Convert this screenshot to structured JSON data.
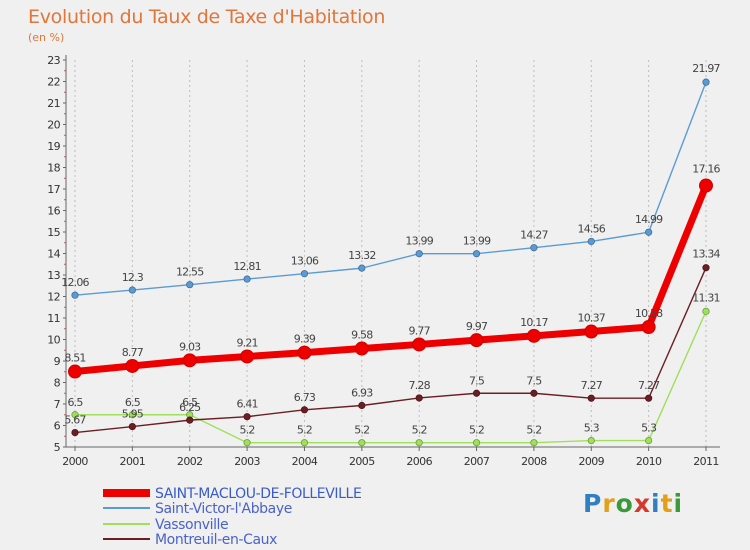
{
  "header": {
    "title": "Evolution du Taux de Taxe d'Habitation",
    "subtitle": "(en %)"
  },
  "logo": {
    "letters": [
      "P",
      "r",
      "o",
      "x",
      "i",
      "t",
      "i"
    ],
    "colors": [
      "#2f7fc1",
      "#e2a019",
      "#3a9a3a",
      "#d33a2c",
      "#2f7fc1",
      "#e2a019",
      "#3a9a3a"
    ]
  },
  "chart_data": {
    "type": "line",
    "title": "Evolution du Taux de Taxe d'Habitation",
    "ylabel": "(en %)",
    "x": [
      "2000",
      "2001",
      "2002",
      "2003",
      "2004",
      "2005",
      "2006",
      "2007",
      "2008",
      "2009",
      "2010",
      "2011"
    ],
    "ylim": [
      5,
      23
    ],
    "yticks": [
      5,
      6,
      7,
      8,
      9,
      10,
      11,
      12,
      13,
      14,
      15,
      16,
      17,
      18,
      19,
      20,
      21,
      22,
      23
    ],
    "grid": "vertical",
    "legend_position": "bottom-left",
    "series": [
      {
        "name": "SAINT-MACLOU-DE-FOLLEVILLE",
        "color": "#ee0000",
        "values": [
          8.51,
          8.77,
          9.03,
          9.21,
          9.39,
          9.58,
          9.77,
          9.97,
          10.17,
          10.37,
          10.58,
          17.16
        ],
        "labels": [
          "8.51",
          "8.77",
          "9.03",
          "9.21",
          "9.39",
          "9.58",
          "9.77",
          "9.97",
          "10.17",
          "10.37",
          "10.58",
          "17.16"
        ]
      },
      {
        "name": "Saint-Victor-l'Abbaye",
        "color": "#5b9bd5",
        "values": [
          12.06,
          12.3,
          12.55,
          12.81,
          13.06,
          13.32,
          13.99,
          13.99,
          14.27,
          14.56,
          14.99,
          21.97
        ],
        "labels": [
          "12.06",
          "12.3",
          "12.55",
          "12.81",
          "13.06",
          "13.32",
          "13.99",
          "13.99",
          "14.27",
          "14.56",
          "14.99",
          "21.97"
        ]
      },
      {
        "name": "Vassonville",
        "color": "#9fe05a",
        "values": [
          6.5,
          6.5,
          6.5,
          5.2,
          5.2,
          5.2,
          5.2,
          5.2,
          5.2,
          5.3,
          5.3,
          11.31
        ],
        "labels": [
          "6.5",
          "6.5",
          "6.5",
          "5.2",
          "5.2",
          "5.2",
          "5.2",
          "5.2",
          "5.2",
          "5.3",
          "5.3",
          "11.31"
        ]
      },
      {
        "name": "Montreuil-en-Caux",
        "color": "#6b1f24",
        "values": [
          5.67,
          5.95,
          6.25,
          6.41,
          6.73,
          6.93,
          7.28,
          7.5,
          7.5,
          7.27,
          7.27,
          13.34
        ],
        "labels": [
          "5.67",
          "5.95",
          "6.25",
          "6.41",
          "6.73",
          "6.93",
          "7.28",
          "7.5",
          "7.5",
          "7.27",
          "7.27",
          "13.34"
        ]
      }
    ]
  }
}
